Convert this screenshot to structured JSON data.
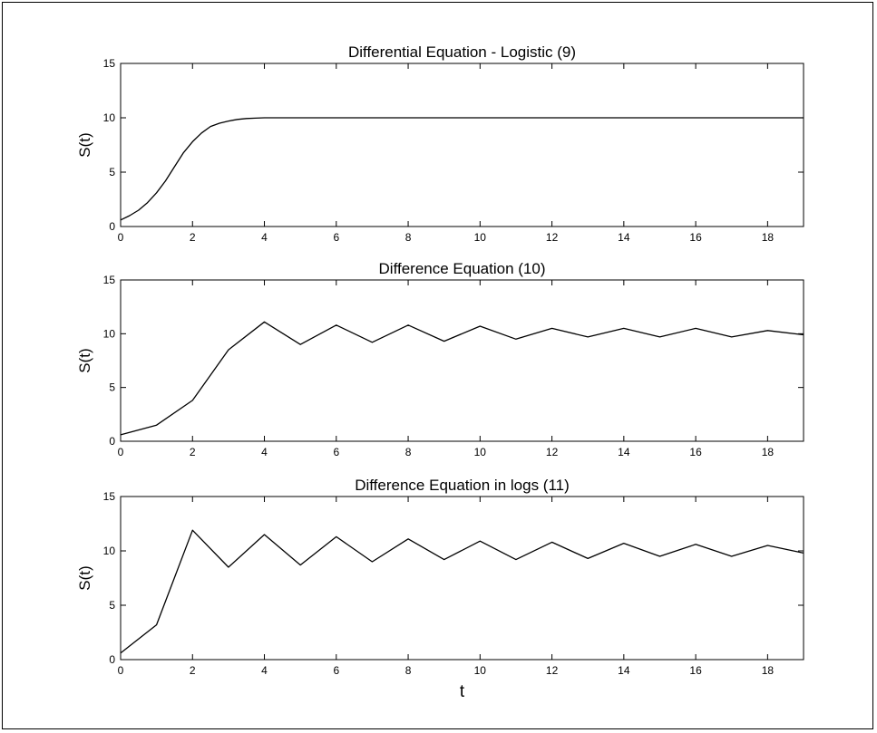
{
  "chart_data": [
    {
      "type": "line",
      "title": "Differential Equation - Logistic (9)",
      "xlabel": "",
      "ylabel": "S(t)",
      "xlim": [
        0,
        19
      ],
      "ylim": [
        0,
        15
      ],
      "xticks": [
        "0",
        "2",
        "4",
        "6",
        "8",
        "10",
        "12",
        "14",
        "16",
        "18"
      ],
      "yticks": [
        "0",
        "5",
        "10",
        "15"
      ],
      "grid": false,
      "x": [
        0,
        0.25,
        0.5,
        0.75,
        1,
        1.25,
        1.5,
        1.75,
        2,
        2.25,
        2.5,
        2.75,
        3,
        3.25,
        3.5,
        3.75,
        4,
        5,
        6,
        8,
        10,
        12,
        14,
        16,
        18,
        19
      ],
      "values": [
        0.6,
        1.0,
        1.5,
        2.2,
        3.1,
        4.2,
        5.5,
        6.8,
        7.8,
        8.6,
        9.2,
        9.5,
        9.7,
        9.85,
        9.93,
        9.97,
        10.0,
        10.0,
        10.0,
        10.0,
        10.0,
        10.0,
        10.0,
        10.0,
        10.0,
        10.0
      ]
    },
    {
      "type": "line",
      "title": "Difference Equation (10)",
      "xlabel": "",
      "ylabel": "S(t)",
      "xlim": [
        0,
        19
      ],
      "ylim": [
        0,
        15
      ],
      "xticks": [
        "0",
        "2",
        "4",
        "6",
        "8",
        "10",
        "12",
        "14",
        "16",
        "18"
      ],
      "yticks": [
        "0",
        "5",
        "10",
        "15"
      ],
      "grid": false,
      "x": [
        0,
        1,
        2,
        3,
        4,
        5,
        6,
        7,
        8,
        9,
        10,
        11,
        12,
        13,
        14,
        15,
        16,
        17,
        18,
        19
      ],
      "values": [
        0.6,
        1.5,
        3.8,
        8.5,
        11.1,
        9.0,
        10.8,
        9.2,
        10.8,
        9.3,
        10.7,
        9.5,
        10.5,
        9.7,
        10.5,
        9.7,
        10.5,
        9.7,
        10.3,
        9.9
      ]
    },
    {
      "type": "line",
      "title": "Difference Equation in logs (11)",
      "xlabel": "t",
      "ylabel": "S(t)",
      "xlim": [
        0,
        19
      ],
      "ylim": [
        0,
        15
      ],
      "xticks": [
        "0",
        "2",
        "4",
        "6",
        "8",
        "10",
        "12",
        "14",
        "16",
        "18"
      ],
      "yticks": [
        "0",
        "5",
        "10",
        "15"
      ],
      "grid": false,
      "x": [
        0,
        1,
        2,
        3,
        4,
        5,
        6,
        7,
        8,
        9,
        10,
        11,
        12,
        13,
        14,
        15,
        16,
        17,
        18,
        19
      ],
      "values": [
        0.6,
        3.2,
        11.9,
        8.5,
        11.5,
        8.7,
        11.3,
        9.0,
        11.1,
        9.2,
        10.9,
        9.2,
        10.8,
        9.3,
        10.7,
        9.5,
        10.6,
        9.5,
        10.5,
        9.8
      ]
    }
  ]
}
